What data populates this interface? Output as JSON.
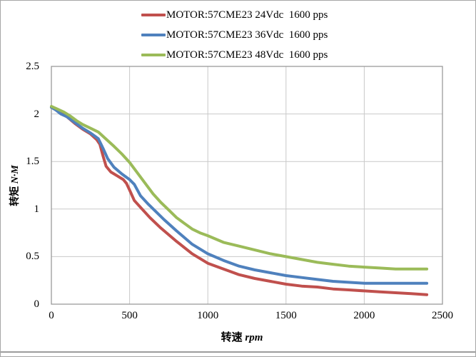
{
  "chart_data": {
    "type": "line",
    "title": "",
    "legend_position": "top",
    "grid": true,
    "x_axis": {
      "label_cn": "转速",
      "label_unit": "rpm",
      "range": [
        0,
        2500
      ],
      "ticks": [
        "0",
        "500",
        "1000",
        "1500",
        "2000",
        "2500"
      ],
      "tick_values": [
        0,
        500,
        1000,
        1500,
        2000,
        2500
      ]
    },
    "y_axis": {
      "label_cn": "转矩",
      "label_unit": "N·M",
      "range": [
        0,
        2.5
      ],
      "ticks": [
        "0",
        "0.5",
        "1",
        "1.5",
        "2",
        "2.5"
      ],
      "tick_values": [
        0,
        0.5,
        1,
        1.5,
        2,
        2.5
      ]
    },
    "colors": {
      "red_24v": "#C0504D",
      "blue_36v": "#4F81BD",
      "green_48v": "#9BBB59",
      "gridline": "#c9c9c9",
      "plot_border": "#9a9a9a"
    },
    "series": [
      {
        "label": "MOTOR:57CME23 24Vdc  1600 pps",
        "color": "#C0504D",
        "points": [
          [
            0,
            2.07
          ],
          [
            30,
            2.05
          ],
          [
            60,
            2.01
          ],
          [
            100,
            1.97
          ],
          [
            150,
            1.9
          ],
          [
            200,
            1.84
          ],
          [
            250,
            1.79
          ],
          [
            290,
            1.73
          ],
          [
            310,
            1.68
          ],
          [
            330,
            1.56
          ],
          [
            350,
            1.45
          ],
          [
            380,
            1.39
          ],
          [
            420,
            1.35
          ],
          [
            460,
            1.31
          ],
          [
            480,
            1.27
          ],
          [
            500,
            1.2
          ],
          [
            530,
            1.09
          ],
          [
            580,
            1.0
          ],
          [
            630,
            0.91
          ],
          [
            700,
            0.8
          ],
          [
            800,
            0.66
          ],
          [
            900,
            0.53
          ],
          [
            1000,
            0.43
          ],
          [
            1100,
            0.37
          ],
          [
            1200,
            0.31
          ],
          [
            1300,
            0.27
          ],
          [
            1400,
            0.24
          ],
          [
            1500,
            0.21
          ],
          [
            1600,
            0.19
          ],
          [
            1700,
            0.18
          ],
          [
            1800,
            0.16
          ],
          [
            1900,
            0.15
          ],
          [
            2000,
            0.14
          ],
          [
            2100,
            0.13
          ],
          [
            2200,
            0.12
          ],
          [
            2300,
            0.11
          ],
          [
            2400,
            0.1
          ]
        ]
      },
      {
        "label": "MOTOR:57CME23 36Vdc  1600 pps",
        "color": "#4F81BD",
        "points": [
          [
            0,
            2.07
          ],
          [
            30,
            2.04
          ],
          [
            60,
            2.0
          ],
          [
            100,
            1.97
          ],
          [
            150,
            1.91
          ],
          [
            200,
            1.85
          ],
          [
            250,
            1.8
          ],
          [
            300,
            1.74
          ],
          [
            330,
            1.64
          ],
          [
            360,
            1.53
          ],
          [
            400,
            1.44
          ],
          [
            450,
            1.37
          ],
          [
            500,
            1.31
          ],
          [
            530,
            1.26
          ],
          [
            570,
            1.14
          ],
          [
            620,
            1.05
          ],
          [
            670,
            0.97
          ],
          [
            720,
            0.89
          ],
          [
            800,
            0.77
          ],
          [
            900,
            0.63
          ],
          [
            1000,
            0.53
          ],
          [
            1100,
            0.46
          ],
          [
            1200,
            0.4
          ],
          [
            1300,
            0.36
          ],
          [
            1400,
            0.33
          ],
          [
            1500,
            0.3
          ],
          [
            1600,
            0.28
          ],
          [
            1700,
            0.26
          ],
          [
            1800,
            0.24
          ],
          [
            1900,
            0.23
          ],
          [
            2000,
            0.22
          ],
          [
            2100,
            0.22
          ],
          [
            2200,
            0.22
          ],
          [
            2300,
            0.22
          ],
          [
            2400,
            0.22
          ]
        ]
      },
      {
        "label": "MOTOR:57CME23 48Vdc  1600 pps",
        "color": "#9BBB59",
        "points": [
          [
            0,
            2.08
          ],
          [
            40,
            2.05
          ],
          [
            80,
            2.02
          ],
          [
            120,
            1.98
          ],
          [
            160,
            1.93
          ],
          [
            200,
            1.89
          ],
          [
            250,
            1.85
          ],
          [
            300,
            1.81
          ],
          [
            340,
            1.75
          ],
          [
            400,
            1.66
          ],
          [
            450,
            1.58
          ],
          [
            500,
            1.49
          ],
          [
            550,
            1.38
          ],
          [
            600,
            1.27
          ],
          [
            650,
            1.16
          ],
          [
            700,
            1.07
          ],
          [
            750,
            0.99
          ],
          [
            800,
            0.91
          ],
          [
            850,
            0.85
          ],
          [
            900,
            0.79
          ],
          [
            950,
            0.75
          ],
          [
            1000,
            0.72
          ],
          [
            1100,
            0.65
          ],
          [
            1200,
            0.61
          ],
          [
            1300,
            0.57
          ],
          [
            1400,
            0.53
          ],
          [
            1500,
            0.5
          ],
          [
            1600,
            0.47
          ],
          [
            1700,
            0.44
          ],
          [
            1800,
            0.42
          ],
          [
            1900,
            0.4
          ],
          [
            2000,
            0.39
          ],
          [
            2100,
            0.38
          ],
          [
            2200,
            0.37
          ],
          [
            2300,
            0.37
          ],
          [
            2400,
            0.37
          ]
        ]
      }
    ]
  }
}
